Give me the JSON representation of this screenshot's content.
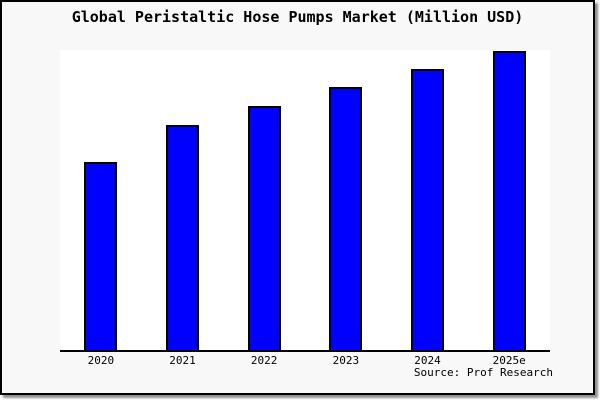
{
  "chart": {
    "title": "Global Peristaltic Hose Pumps Market (Million USD)",
    "source": "Source: Prof Research"
  },
  "chart_data": {
    "type": "bar",
    "title": "Global Peristaltic Hose Pumps Market (Million USD)",
    "categories": [
      "2020",
      "2021",
      "2022",
      "2023",
      "2024",
      "2025e"
    ],
    "values": [
      62.8,
      75.2,
      81.5,
      87.9,
      93.9,
      100
    ],
    "xlabel": "",
    "ylabel": "",
    "ylim": [
      0,
      100.3
    ],
    "grid": false,
    "legend": false,
    "bar_fill": "#0000ff",
    "bar_border": "#000000",
    "source": "Source: Prof Research"
  },
  "colors": {
    "figure_bg": "#f8f8f8",
    "plot_bg": "#ffffff",
    "bar_fill": "#0000ff",
    "axis_line": "#000000",
    "frame_border": "#000000",
    "frame_shadow": "#8f8f8f"
  }
}
